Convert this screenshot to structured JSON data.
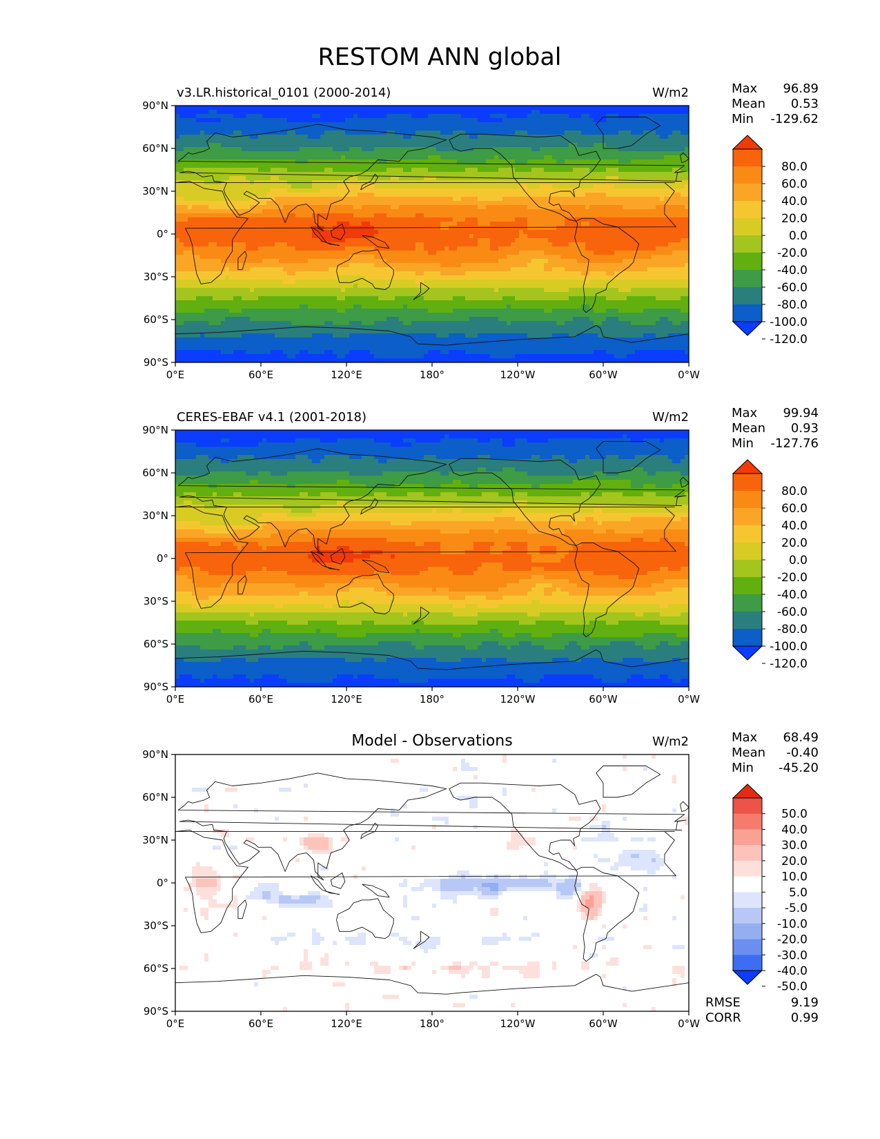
{
  "figure_title": "RESTOM ANN global",
  "units": "W/m2",
  "axes": {
    "lat_ticks": [
      "90°N",
      "60°N",
      "30°N",
      "0°",
      "30°S",
      "60°S",
      "90°S"
    ],
    "lon_ticks": [
      "0°E",
      "60°E",
      "120°E",
      "180°",
      "120°W",
      "60°W",
      "0°W"
    ]
  },
  "stat_labels": {
    "max": "Max",
    "mean": "Mean",
    "min": "Min",
    "rmse": "RMSE",
    "corr": "CORR"
  },
  "colors": {
    "abs_scale": [
      "#0a3dff",
      "#0c5ec8",
      "#2a7e7e",
      "#3e9b46",
      "#61b00f",
      "#a3c51d",
      "#d8cc24",
      "#f6c631",
      "#fba526",
      "#f98b14",
      "#f8640c",
      "#f23a08"
    ],
    "diff_scale": [
      "#0a3dff",
      "#3d6df2",
      "#6a8ff0",
      "#94aef2",
      "#b8c8f6",
      "#dde5fc",
      "#ffffff",
      "#fde0dc",
      "#fcc3bb",
      "#f9a294",
      "#f57c6d",
      "#ee5347",
      "#e62a12"
    ]
  },
  "chart_data": [
    {
      "type": "heatmap",
      "title": "v3.LR.historical_0101 (2000-2014)",
      "units": "W/m2",
      "stats": {
        "max": "96.89",
        "mean": "0.53",
        "min": "-129.62"
      },
      "colorbar_ticks": [
        "80.0",
        "60.0",
        "40.0",
        "20.0",
        "0.0",
        "-20.0",
        "-40.0",
        "-60.0",
        "-80.0",
        "-100.0",
        "-120.0"
      ],
      "xlim": [
        0,
        360
      ],
      "ylim": [
        -90,
        90
      ]
    },
    {
      "type": "heatmap",
      "title": "CERES-EBAF v4.1 (2001-2018)",
      "units": "W/m2",
      "stats": {
        "max": "99.94",
        "mean": "0.93",
        "min": "-127.76"
      },
      "colorbar_ticks": [
        "80.0",
        "60.0",
        "40.0",
        "20.0",
        "0.0",
        "-20.0",
        "-40.0",
        "-60.0",
        "-80.0",
        "-100.0",
        "-120.0"
      ],
      "xlim": [
        0,
        360
      ],
      "ylim": [
        -90,
        90
      ]
    },
    {
      "type": "heatmap",
      "title": "Model - Observations",
      "units": "W/m2",
      "stats": {
        "max": "68.49",
        "mean": "-0.40",
        "min": "-45.20",
        "rmse": "9.19",
        "corr": "0.99"
      },
      "colorbar_ticks": [
        "50.0",
        "40.0",
        "30.0",
        "20.0",
        "10.0",
        "5.0",
        "-5.0",
        "-10.0",
        "-20.0",
        "-30.0",
        "-40.0",
        "-50.0"
      ],
      "xlim": [
        0,
        360
      ],
      "ylim": [
        -90,
        90
      ]
    }
  ]
}
